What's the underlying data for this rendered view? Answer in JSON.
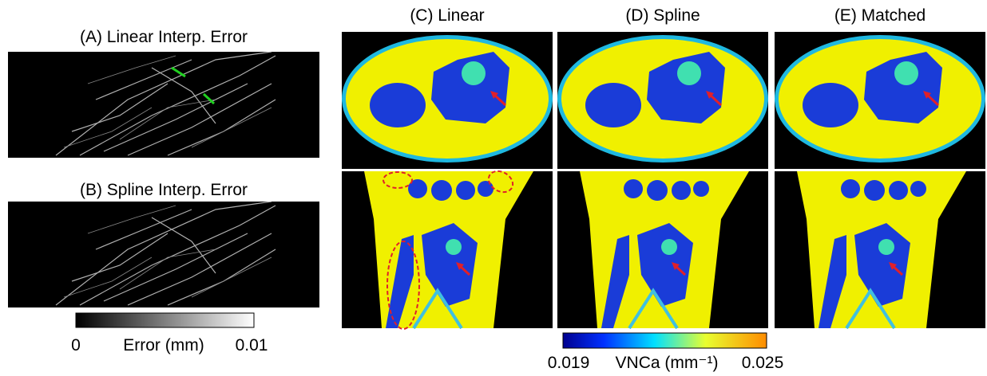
{
  "panels": [
    {
      "title": "(A) Linear Interp. Error"
    },
    {
      "title": "(B) Spline Interp. Error"
    },
    {
      "title": "(C) Linear"
    },
    {
      "title": "(D) Spline"
    },
    {
      "title": "(E) Matched"
    }
  ],
  "colorbars": [
    {
      "label": "Error (mm)",
      "min": "0",
      "max": "0.01"
    },
    {
      "label": "VNCa (mm⁻¹)",
      "min": "0.019",
      "max": "0.025"
    }
  ]
}
